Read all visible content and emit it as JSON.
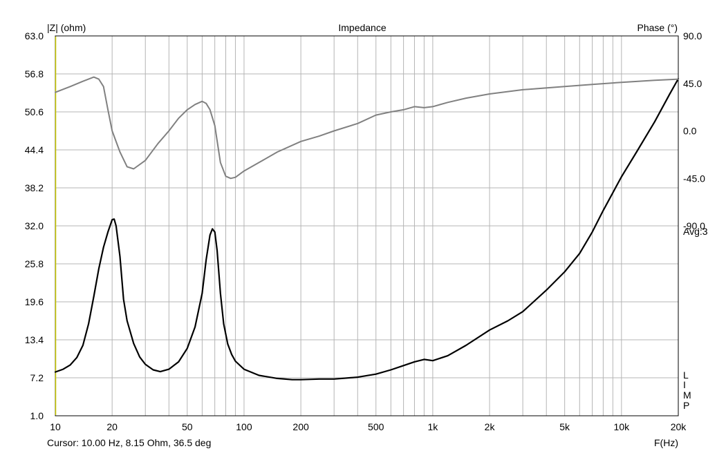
{
  "chart_data": {
    "type": "line",
    "title": "Impedance",
    "xlabel": "F(Hz)",
    "ylabel_left": "|Z| (ohm)",
    "ylabel_right": "Phase (°)",
    "x_scale": "log",
    "xlim": [
      10,
      20000
    ],
    "ylim_left": [
      1.0,
      63.0
    ],
    "ylim_right": [
      -270,
      90
    ],
    "grid": true,
    "x_ticks": [
      {
        "value": 10,
        "label": "10"
      },
      {
        "value": 20,
        "label": "20"
      },
      {
        "value": 50,
        "label": "50"
      },
      {
        "value": 100,
        "label": "100"
      },
      {
        "value": 200,
        "label": "200"
      },
      {
        "value": 500,
        "label": "500"
      },
      {
        "value": 1000,
        "label": "1k"
      },
      {
        "value": 2000,
        "label": "2k"
      },
      {
        "value": 5000,
        "label": "5k"
      },
      {
        "value": 10000,
        "label": "10k"
      },
      {
        "value": 20000,
        "label": "20k"
      }
    ],
    "y_ticks_left": [
      "63.0",
      "56.8",
      "50.6",
      "44.4",
      "38.2",
      "32.0",
      "25.8",
      "19.6",
      "13.4",
      "7.2",
      "1.0"
    ],
    "y_ticks_right": [
      "90.0",
      "45.0",
      "0.0",
      "-45.0",
      "-90.0"
    ],
    "annotations": {
      "avg": "Avg:3",
      "limp": [
        "L",
        "I",
        "M",
        "P"
      ],
      "cursor": "Cursor: 10.00 Hz, 8.15 Ohm, 36.5 deg"
    },
    "series": [
      {
        "color": "#000000",
        "axis": "left",
        "x": [
          10,
          11,
          12,
          13,
          14,
          15,
          16,
          17,
          18,
          19,
          20,
          20.5,
          21,
          22,
          23,
          24,
          26,
          28,
          30,
          33,
          36,
          40,
          45,
          50,
          55,
          60,
          63,
          66,
          68,
          70,
          72,
          75,
          78,
          82,
          86,
          90,
          100,
          120,
          150,
          180,
          200,
          250,
          300,
          400,
          500,
          600,
          700,
          800,
          900,
          1000,
          1200,
          1500,
          2000,
          2500,
          3000,
          4000,
          5000,
          6000,
          7000,
          8000,
          10000,
          12000,
          15000,
          18000,
          20000
        ],
        "y": [
          8.15,
          8.6,
          9.3,
          10.5,
          12.5,
          16.0,
          20.5,
          25.0,
          28.5,
          31.0,
          33.0,
          33.1,
          32.0,
          27.0,
          20.0,
          16.5,
          12.8,
          10.6,
          9.4,
          8.5,
          8.2,
          8.6,
          9.8,
          12.0,
          15.5,
          21.0,
          26.5,
          30.5,
          31.5,
          31.0,
          28.0,
          21.0,
          16.0,
          12.7,
          11.0,
          9.9,
          8.6,
          7.6,
          7.1,
          6.9,
          6.9,
          7.0,
          7.0,
          7.3,
          7.8,
          8.5,
          9.2,
          9.8,
          10.2,
          10.0,
          10.8,
          12.5,
          15.0,
          16.5,
          18.0,
          21.5,
          24.5,
          27.5,
          31.0,
          34.5,
          40.0,
          44.0,
          49.0,
          53.5,
          56.0
        ]
      },
      {
        "color": "#808080",
        "axis": "right",
        "x": [
          10,
          12,
          14,
          16,
          17,
          18,
          19,
          20,
          22,
          24,
          26,
          30,
          35,
          40,
          45,
          50,
          55,
          60,
          63,
          66,
          70,
          75,
          80,
          85,
          90,
          100,
          120,
          150,
          200,
          250,
          300,
          400,
          500,
          600,
          700,
          800,
          900,
          1000,
          1200,
          1500,
          2000,
          3000,
          5000,
          7000,
          10000,
          15000,
          20000
        ],
        "y": [
          36.5,
          42,
          47,
          51,
          49,
          42,
          20,
          0,
          -20,
          -34,
          -36,
          -28,
          -12,
          0,
          12,
          20,
          25,
          28,
          26,
          20,
          5,
          -30,
          -43,
          -45,
          -44,
          -38,
          -30,
          -20,
          -10,
          -5,
          0,
          7,
          15,
          18,
          20,
          23,
          22,
          23,
          27,
          31,
          35,
          39,
          42,
          44,
          46,
          48,
          49
        ]
      }
    ]
  }
}
